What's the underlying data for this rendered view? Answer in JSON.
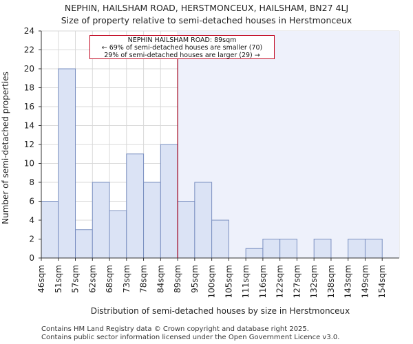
{
  "titles": {
    "line1": "NEPHIN, HAILSHAM ROAD, HERSTMONCEUX, HAILSHAM, BN27 4LJ",
    "line2": "Size of property relative to semi-detached houses in Herstmonceux"
  },
  "footer": {
    "line1": "Contains HM Land Registry data © Crown copyright and database right 2025.",
    "line2": "Contains public sector information licensed under the Open Government Licence v3.0."
  },
  "annotation": {
    "line1": "NEPHIN HAILSHAM ROAD: 89sqm",
    "line2": "← 69% of semi-detached houses are smaller (70)",
    "line3": "29% of semi-detached houses are larger (29) →"
  },
  "chart_data": {
    "type": "bar",
    "title": "Size of property relative to semi-detached houses in Herstmonceux",
    "xlabel": "Distribution of semi-detached houses by size in Herstmonceux",
    "ylabel": "Number of semi-detached properties",
    "categories": [
      "46sqm",
      "51sqm",
      "57sqm",
      "62sqm",
      "68sqm",
      "73sqm",
      "78sqm",
      "84sqm",
      "89sqm",
      "95sqm",
      "100sqm",
      "105sqm",
      "111sqm",
      "116sqm",
      "122sqm",
      "127sqm",
      "132sqm",
      "138sqm",
      "143sqm",
      "149sqm",
      "154sqm"
    ],
    "values": [
      6,
      20,
      3,
      8,
      5,
      11,
      8,
      12,
      6,
      8,
      4,
      0,
      1,
      2,
      2,
      0,
      2,
      0,
      2,
      2,
      0
    ],
    "ylim": [
      0,
      24
    ],
    "yticks": [
      0,
      2,
      4,
      6,
      8,
      10,
      12,
      14,
      16,
      18,
      20,
      22,
      24
    ],
    "property_marker_bin_index": 8,
    "colors": {
      "bar_fill": "#dbe3f5",
      "bar_stroke": "#7a8fc0",
      "highlight_region": "#eef1fb",
      "marker_line": "#a0001a",
      "grid": "#d9d9d9"
    }
  }
}
